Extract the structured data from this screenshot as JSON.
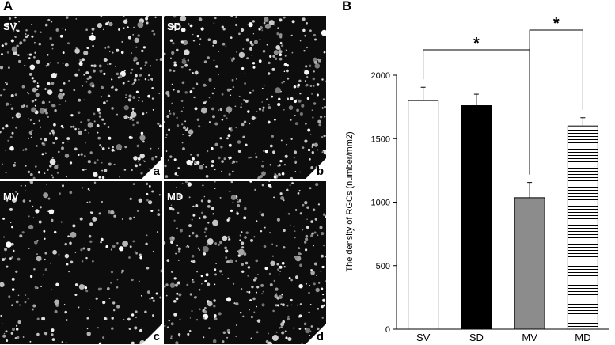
{
  "panel_a": {
    "letter": "A",
    "images": [
      {
        "id": "sv",
        "corner_label": "SV",
        "sub_label": "a",
        "density": 1.0
      },
      {
        "id": "sd",
        "corner_label": "SD",
        "sub_label": "b",
        "density": 0.97
      },
      {
        "id": "mv",
        "corner_label": "MV",
        "sub_label": "c",
        "density": 0.57
      },
      {
        "id": "md",
        "corner_label": "MD",
        "sub_label": "d",
        "density": 0.88
      }
    ]
  },
  "panel_b": {
    "letter": "B"
  },
  "chart_data": {
    "type": "bar",
    "categories": [
      "SV",
      "SD",
      "MV",
      "MD"
    ],
    "values": [
      1800,
      1760,
      1035,
      1600
    ],
    "errors": [
      105,
      90,
      120,
      65
    ],
    "fills": [
      "#ffffff",
      "#000000",
      "#8c8c8c",
      "horizontal-stripes"
    ],
    "ylabel": "The density of RGCs (number/mm2)",
    "xlabel": "",
    "ylim": [
      0,
      2000
    ],
    "yticks": [
      0,
      500,
      1000,
      1500,
      2000
    ],
    "grid": false,
    "significance": [
      {
        "from": "SV",
        "to": "MV",
        "label": "*"
      },
      {
        "from": "MV",
        "to": "MD",
        "label": "*"
      }
    ]
  }
}
